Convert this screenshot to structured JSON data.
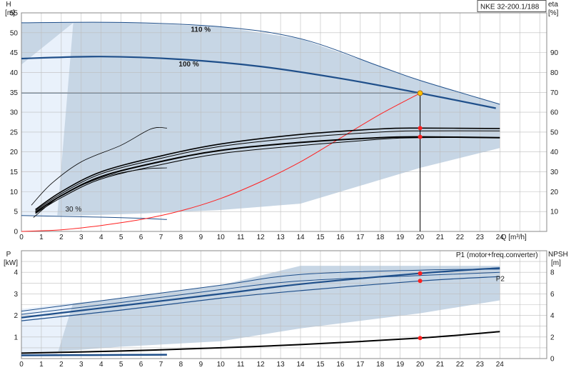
{
  "chart_data": [
    {
      "type": "line",
      "panel": "head-efficiency",
      "title": "NKE 32-200.1/188",
      "xlabel": "Q [m³/h]",
      "ylabel_left_name": "H",
      "ylabel_left_unit": "[m]",
      "ylabel_right_name": "eta",
      "ylabel_right_unit": "[%]",
      "xlim": [
        0,
        24.8
      ],
      "ylim_left": [
        0,
        55
      ],
      "ylim_right": [
        0,
        110
      ],
      "x_ticks": [
        "0",
        "1",
        "2",
        "3",
        "4",
        "5",
        "6",
        "7",
        "8",
        "9",
        "10",
        "11",
        "12",
        "13",
        "14",
        "15",
        "16",
        "17",
        "18",
        "19",
        "20",
        "21",
        "22",
        "23",
        "24"
      ],
      "y_ticks_left": [
        "0",
        "5",
        "10",
        "15",
        "20",
        "25",
        "30",
        "35",
        "40",
        "45",
        "50",
        "55"
      ],
      "y_ticks_right": [
        "10",
        "20",
        "30",
        "40",
        "50",
        "60",
        "70",
        "80",
        "90"
      ],
      "grid": true,
      "speed_labels": [
        "110 %",
        "100 %",
        "30 %"
      ],
      "region": {
        "upper": [
          [
            0,
            52.5
          ],
          [
            5,
            52.6
          ],
          [
            10,
            51.5
          ],
          [
            14,
            48.5
          ],
          [
            18,
            41.5
          ],
          [
            20,
            38
          ],
          [
            24,
            32
          ]
        ],
        "lower": [
          [
            24,
            21
          ],
          [
            20,
            16
          ],
          [
            14,
            7
          ],
          [
            10,
            5.4
          ],
          [
            6,
            4.5
          ],
          [
            3,
            4
          ],
          [
            0,
            4
          ]
        ]
      },
      "series": [
        {
          "name": "110 %",
          "values": [
            [
              0,
              52.5
            ],
            [
              5,
              52.6
            ],
            [
              10,
              51.5
            ],
            [
              14,
              48.5
            ],
            [
              18,
              41.5
            ],
            [
              20,
              38
            ],
            [
              24,
              32
            ]
          ]
        },
        {
          "name": "100 %",
          "values": [
            [
              0,
              43.5
            ],
            [
              4,
              44
            ],
            [
              8,
              43.3
            ],
            [
              12,
              41.5
            ],
            [
              16,
              38.5
            ],
            [
              20,
              34.8
            ],
            [
              23.8,
              31
            ]
          ]
        },
        {
          "name": "30 %",
          "values": [
            [
              0,
              4
            ],
            [
              2,
              3.8
            ],
            [
              4,
              3.6
            ],
            [
              6,
              3.3
            ],
            [
              7.3,
              3
            ]
          ]
        },
        {
          "name": "",
          "values": [
            [
              0,
              0
            ],
            [
              2,
              0.4
            ],
            [
              4,
              1.5
            ],
            [
              6,
              3
            ],
            [
              8,
              5.2
            ],
            [
              10,
              8.3
            ],
            [
              12,
              12.5
            ],
            [
              14,
              17.5
            ],
            [
              16,
              23.5
            ],
            [
              18,
              29.5
            ],
            [
              20,
              34.8
            ]
          ]
        },
        {
          "name": "",
          "values": [
            [
              0.7,
              5.5
            ],
            [
              2,
              10
            ],
            [
              4,
              15
            ],
            [
              7,
              19
            ],
            [
              10,
              22
            ],
            [
              14,
              24.4
            ],
            [
              18,
              25.8
            ],
            [
              20,
              26
            ],
            [
              24,
              25.9
            ]
          ]
        },
        {
          "name": "",
          "values": [
            [
              0.7,
              5.2
            ],
            [
              2,
              9.5
            ],
            [
              4,
              14.5
            ],
            [
              7,
              18.4
            ],
            [
              10,
              21.4
            ],
            [
              14,
              23.6
            ],
            [
              18,
              25
            ],
            [
              20,
              25.3
            ],
            [
              24,
              25.3
            ]
          ]
        },
        {
          "name": "",
          "values": [
            [
              0.7,
              4.8
            ],
            [
              2,
              9
            ],
            [
              4,
              13.8
            ],
            [
              7,
              17.6
            ],
            [
              10,
              20.4
            ],
            [
              14,
              22.4
            ],
            [
              18,
              23.6
            ],
            [
              20,
              23.8
            ],
            [
              24,
              23.6
            ]
          ]
        },
        {
          "name": "",
          "values": [
            [
              0.7,
              4.5
            ],
            [
              2,
              8.5
            ],
            [
              4,
              13.2
            ],
            [
              7,
              16.8
            ],
            [
              10,
              19.6
            ],
            [
              14,
              21.6
            ],
            [
              18,
              23.2
            ],
            [
              20,
              23.6
            ],
            [
              24,
              23.6
            ]
          ]
        },
        {
          "name": "",
          "values": [
            [
              0.5,
              6.6
            ],
            [
              1.5,
              12
            ],
            [
              3,
              17.5
            ],
            [
              5,
              21.7
            ],
            [
              6.5,
              25.8
            ],
            [
              7.3,
              26
            ]
          ]
        },
        {
          "name": "",
          "values": [
            [
              0.6,
              3.5
            ],
            [
              2,
              9
            ],
            [
              4,
              13.5
            ],
            [
              6,
              15.6
            ],
            [
              7.3,
              16
            ]
          ]
        }
      ],
      "operating_point": {
        "x": 20,
        "h": 34.8,
        "eta_points": [
          52,
          47.6
        ]
      },
      "duty_line_level": 34.8
    },
    {
      "type": "line",
      "panel": "power-npsh",
      "ylabel_left_name": "P",
      "ylabel_left_unit": "[kW]",
      "ylabel_right_name": "NPSH",
      "ylabel_right_unit": "[m]",
      "xlim": [
        0,
        24.8
      ],
      "ylim_left": [
        0,
        5
      ],
      "ylim_right": [
        0,
        10
      ],
      "y_ticks_left": [
        "1",
        "2",
        "3",
        "4"
      ],
      "y_ticks_right": [
        "0",
        "2",
        "4",
        "6",
        "8"
      ],
      "grid": true,
      "region": {
        "upper": [
          [
            0,
            2.3
          ],
          [
            5,
            2.8
          ],
          [
            10,
            3.4
          ],
          [
            14,
            4.3
          ],
          [
            24,
            4.3
          ]
        ],
        "lower": [
          [
            24,
            2.7
          ],
          [
            20,
            2.1
          ],
          [
            14,
            1.4
          ],
          [
            10,
            0.8
          ],
          [
            5,
            0.55
          ],
          [
            0,
            0.2
          ]
        ]
      },
      "series": [
        {
          "name": "P1 (motor+freq.converter)",
          "values": [
            [
              0,
              1.9
            ],
            [
              5,
              2.45
            ],
            [
              10,
              3.0
            ],
            [
              14,
              3.45
            ],
            [
              20,
              3.95
            ],
            [
              24,
              4.2
            ]
          ]
        },
        {
          "name": "P2",
          "values": [
            [
              0,
              1.75
            ],
            [
              5,
              2.25
            ],
            [
              10,
              2.8
            ],
            [
              14,
              3.15
            ],
            [
              20,
              3.6
            ],
            [
              24,
              3.8
            ]
          ]
        },
        {
          "name": "",
          "values": [
            [
              0,
              2.2
            ],
            [
              5,
              2.8
            ],
            [
              10,
              3.4
            ],
            [
              14,
              3.9
            ],
            [
              20,
              4.1
            ],
            [
              24,
              4.15
            ]
          ]
        },
        {
          "name": "",
          "values": [
            [
              0,
              2.05
            ],
            [
              5,
              2.6
            ],
            [
              10,
              3.2
            ],
            [
              14,
              3.6
            ],
            [
              20,
              3.85
            ],
            [
              24,
              4.0
            ]
          ]
        },
        {
          "name": "",
          "values": [
            [
              0,
              0.25
            ],
            [
              5,
              0.35
            ],
            [
              10,
              0.5
            ],
            [
              14,
              0.65
            ],
            [
              20,
              0.95
            ],
            [
              24,
              1.25
            ]
          ]
        },
        {
          "name": "",
          "values": [
            [
              0,
              0.15
            ],
            [
              5,
              0.17
            ],
            [
              7.3,
              0.18
            ]
          ]
        }
      ],
      "operating_points": [
        3.95,
        3.6,
        0.95
      ]
    }
  ],
  "colors": {
    "region": "#c7d6e5",
    "region_light": "#e9f1fb",
    "curve": "#1f4f8a",
    "efficiency": "#000000",
    "system": "#ff2020",
    "point": "#ff2020",
    "duty_point": "#ffc000",
    "grid": "#bdbdbd",
    "title_box_border": "#555555"
  }
}
